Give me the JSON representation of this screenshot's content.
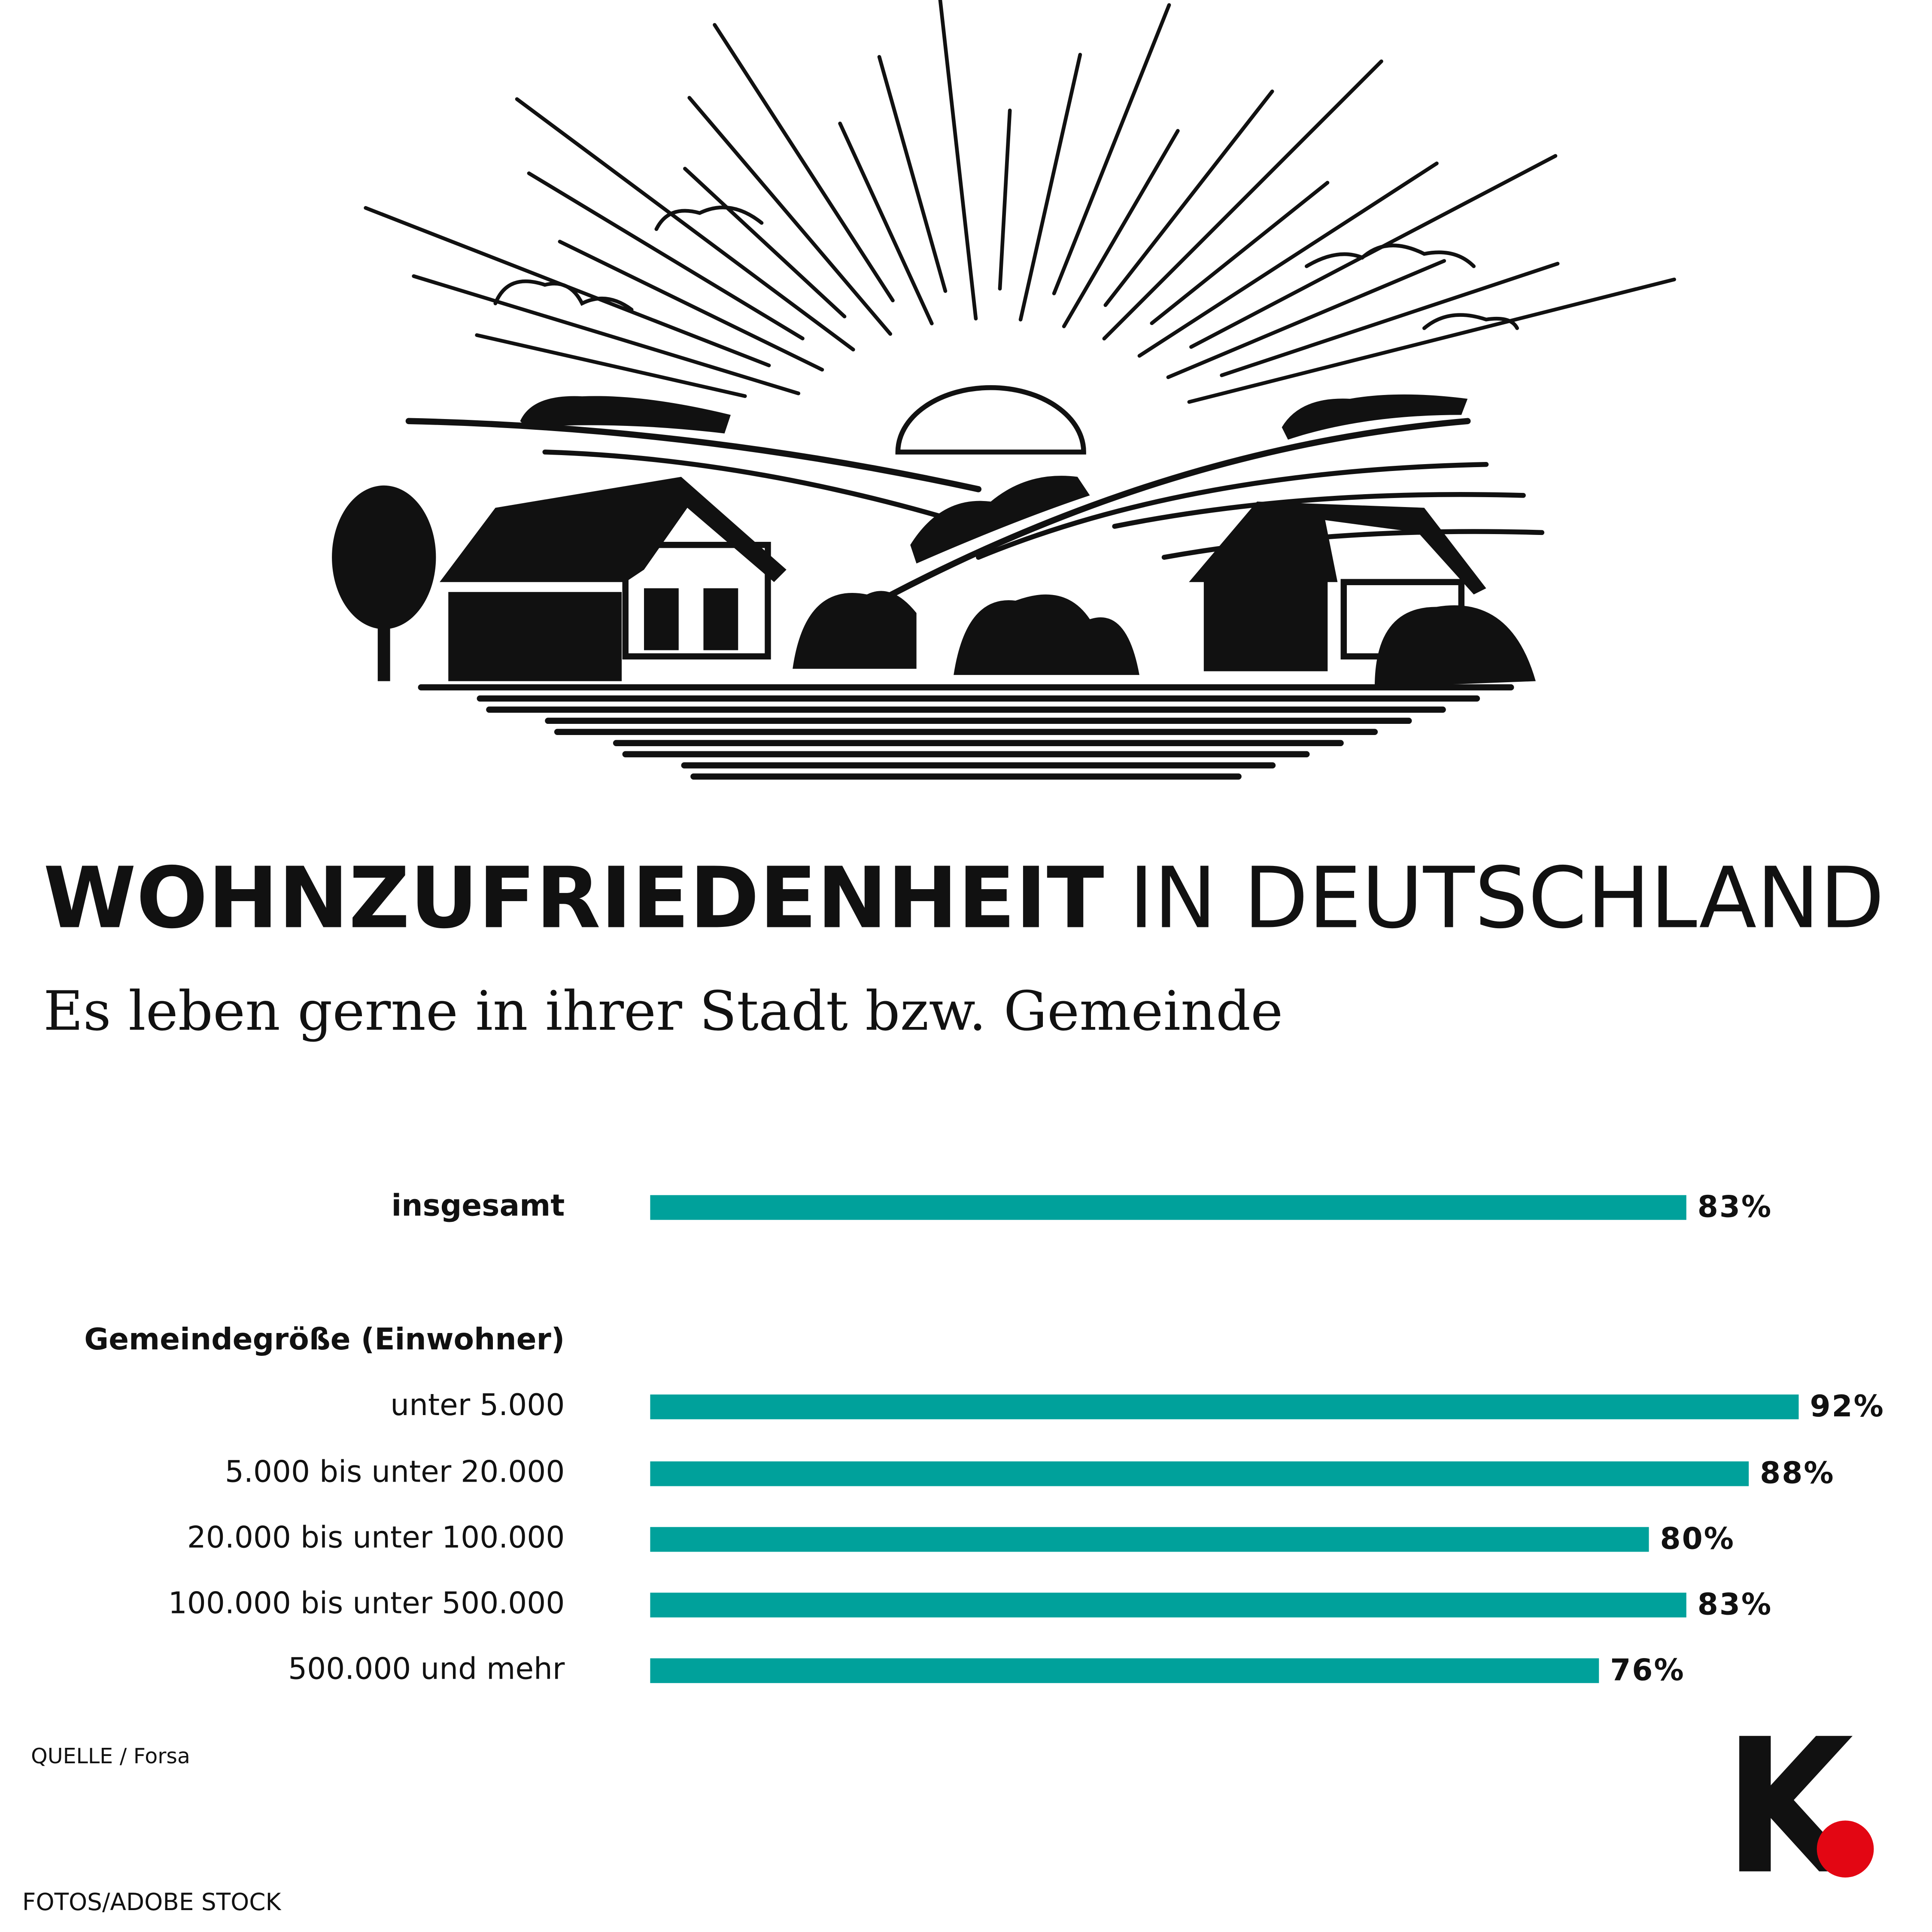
{
  "chart_data": {
    "type": "bar",
    "orientation": "horizontal",
    "title_bold": "WOHNZUFRIEDENHEIT",
    "title_regular": "IN DEUTSCHLAND",
    "subtitle": "Es leben gerne in  ihrer Stadt bzw. Gemeinde",
    "group_label": "Gemeindegröße (Einwohner)",
    "categories": [
      "insgesamt",
      "unter 5.000",
      "5.000 bis unter 20.000",
      "20.000 bis unter 100.000",
      "100.000 bis unter 500.000",
      "500.000 und mehr"
    ],
    "values": [
      83,
      92,
      88,
      80,
      83,
      76
    ],
    "value_labels": [
      "83%",
      "92%",
      "88%",
      "80%",
      "83%",
      "76%"
    ],
    "color": "#00a19b",
    "xlim": [
      0,
      100
    ],
    "source": "QUELLE / Forsa",
    "credit": "FOTOS/ADOBE STOCK",
    "logo": "K"
  }
}
